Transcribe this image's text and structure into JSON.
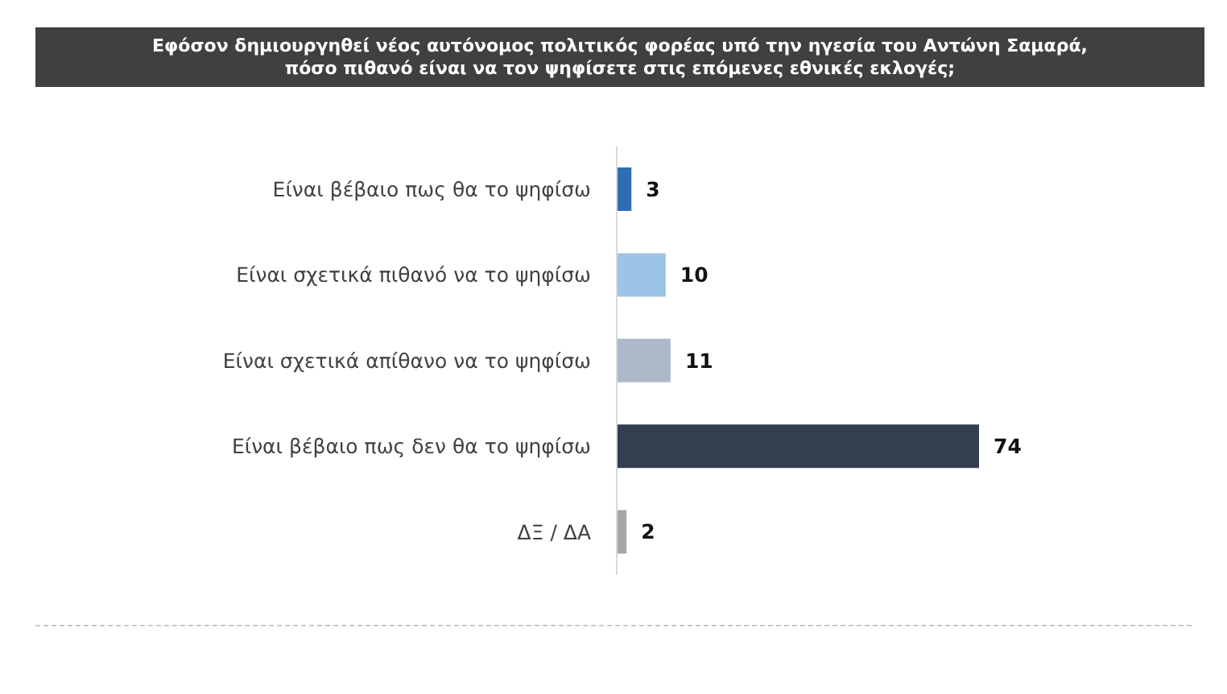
{
  "chart_data": {
    "type": "bar",
    "orientation": "horizontal",
    "title": "Εφόσον δημιουργηθεί νέος αυτόνομος πολιτικός φορέας υπό την ηγεσία του Αντώνη Σαμαρά,\nπόσο πιθανό είναι να τον ψηφίσετε στις επόμενες εθνικές εκλογές;",
    "categories": [
      "Είναι βέβαιο πως θα το ψηφίσω",
      "Είναι σχετικά πιθανό να το ψηφίσω",
      "Είναι σχετικά απίθανο να το ψηφίσω",
      "Είναι βέβαιο πως δεν θα το ψηφίσω",
      "ΔΞ / ΔΑ"
    ],
    "values": [
      3,
      10,
      11,
      74,
      2
    ],
    "colors": [
      "#2e6db4",
      "#9dc3e6",
      "#adb9ca",
      "#333f50",
      "#a6a6a6"
    ],
    "data_labels": true
  }
}
